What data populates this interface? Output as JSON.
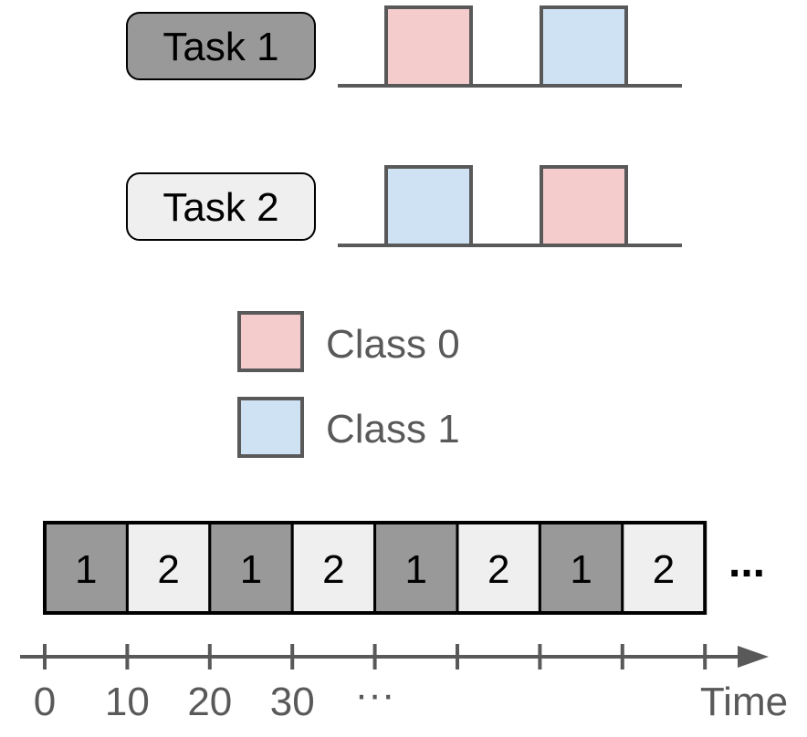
{
  "colors": {
    "class0_fill": "#f4cccc",
    "class1_fill": "#cfe2f3",
    "task1_fill": "#999999",
    "task2_fill": "#efefef",
    "stroke": "#595959",
    "text": "#000000",
    "legend_text": "#595959",
    "axis": "#595959",
    "timeline_stroke": "#000000"
  },
  "tasks": [
    {
      "label": "Task 1",
      "blocks": [
        "class0",
        "class1"
      ]
    },
    {
      "label": "Task 2",
      "blocks": [
        "class1",
        "class0"
      ]
    }
  ],
  "legend": [
    {
      "label": "Class 0",
      "class": "class0"
    },
    {
      "label": "Class 1",
      "class": "class1"
    }
  ],
  "schedule": {
    "cells": [
      "1",
      "2",
      "1",
      "2",
      "1",
      "2",
      "1",
      "2"
    ],
    "ellipsis": "..."
  },
  "axis": {
    "tick_labels": [
      "0",
      "10",
      "20",
      "30",
      "···"
    ],
    "tick_count": 9,
    "label": "Time"
  }
}
